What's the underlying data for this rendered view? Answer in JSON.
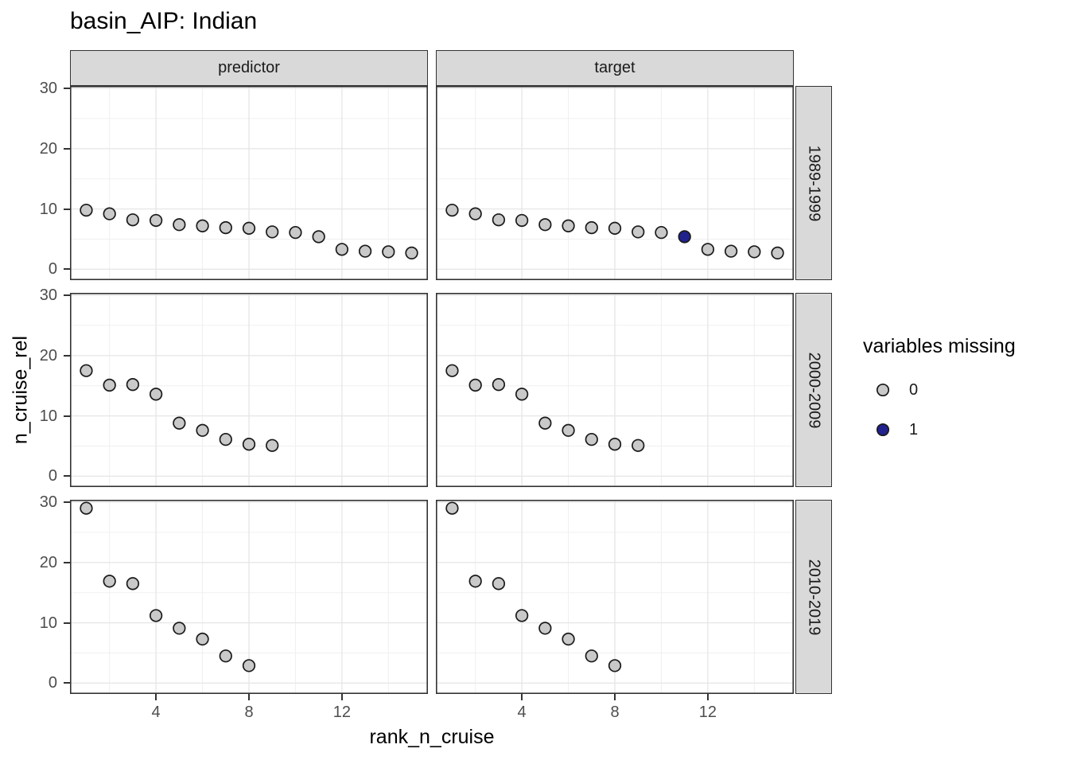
{
  "colors": {
    "background": "#ffffff",
    "panel_background": "#ffffff",
    "panel_border": "#333333",
    "strip_fill": "#d9d9d9",
    "strip_border": "#333333",
    "grid_major": "#e7e7e7",
    "grid_minor": "#f0f0f0",
    "tick_mark": "#333333",
    "tick_label": "#4d4d4d",
    "point_stroke": "#1a1a1a"
  },
  "chart_data": {
    "type": "scatter",
    "title": "basin_AIP: Indian",
    "xlabel": "rank_n_cruise",
    "ylabel": "n_cruise_rel",
    "col_facets": [
      "predictor",
      "target"
    ],
    "row_facets": [
      "1989-1999",
      "2000-2009",
      "2010-2019"
    ],
    "x_ticks": [
      4,
      8,
      12
    ],
    "y_ticks": [
      30,
      20,
      10,
      0
    ],
    "x_minor_ticks": [
      2,
      6,
      10,
      14
    ],
    "y_minor_ticks": [
      25,
      15,
      5
    ],
    "x_domain": [
      0.3,
      15.7
    ],
    "y_domain": [
      -1.8,
      30.4
    ],
    "grid": true,
    "legend": {
      "title": "variables missing",
      "position": "right",
      "entries": [
        {
          "label": "0",
          "fill": "#c9c9c9"
        },
        {
          "label": "1",
          "fill": "#22228e"
        }
      ]
    },
    "panels": [
      {
        "row_facet": "1989-1999",
        "col_facet": "predictor",
        "points": [
          {
            "x": 1,
            "y": 9.8,
            "missing": 0
          },
          {
            "x": 2,
            "y": 9.2,
            "missing": 0
          },
          {
            "x": 3,
            "y": 8.2,
            "missing": 0
          },
          {
            "x": 4,
            "y": 8.1,
            "missing": 0
          },
          {
            "x": 5,
            "y": 7.4,
            "missing": 0
          },
          {
            "x": 6,
            "y": 7.2,
            "missing": 0
          },
          {
            "x": 7,
            "y": 6.9,
            "missing": 0
          },
          {
            "x": 8,
            "y": 6.8,
            "missing": 0
          },
          {
            "x": 9,
            "y": 6.2,
            "missing": 0
          },
          {
            "x": 10,
            "y": 6.1,
            "missing": 0
          },
          {
            "x": 11,
            "y": 5.4,
            "missing": 0
          },
          {
            "x": 12,
            "y": 3.3,
            "missing": 0
          },
          {
            "x": 13,
            "y": 3.0,
            "missing": 0
          },
          {
            "x": 14,
            "y": 2.9,
            "missing": 0
          },
          {
            "x": 15,
            "y": 2.7,
            "missing": 0
          }
        ]
      },
      {
        "row_facet": "1989-1999",
        "col_facet": "target",
        "points": [
          {
            "x": 1,
            "y": 9.8,
            "missing": 0
          },
          {
            "x": 2,
            "y": 9.2,
            "missing": 0
          },
          {
            "x": 3,
            "y": 8.2,
            "missing": 0
          },
          {
            "x": 4,
            "y": 8.1,
            "missing": 0
          },
          {
            "x": 5,
            "y": 7.4,
            "missing": 0
          },
          {
            "x": 6,
            "y": 7.2,
            "missing": 0
          },
          {
            "x": 7,
            "y": 6.9,
            "missing": 0
          },
          {
            "x": 8,
            "y": 6.8,
            "missing": 0
          },
          {
            "x": 9,
            "y": 6.2,
            "missing": 0
          },
          {
            "x": 10,
            "y": 6.1,
            "missing": 0
          },
          {
            "x": 11,
            "y": 5.4,
            "missing": 1
          },
          {
            "x": 12,
            "y": 3.3,
            "missing": 0
          },
          {
            "x": 13,
            "y": 3.0,
            "missing": 0
          },
          {
            "x": 14,
            "y": 2.9,
            "missing": 0
          },
          {
            "x": 15,
            "y": 2.7,
            "missing": 0
          }
        ]
      },
      {
        "row_facet": "2000-2009",
        "col_facet": "predictor",
        "points": [
          {
            "x": 1,
            "y": 17.5,
            "missing": 0
          },
          {
            "x": 2,
            "y": 15.1,
            "missing": 0
          },
          {
            "x": 3,
            "y": 15.2,
            "missing": 0
          },
          {
            "x": 4,
            "y": 13.6,
            "missing": 0
          },
          {
            "x": 5,
            "y": 8.8,
            "missing": 0
          },
          {
            "x": 6,
            "y": 7.6,
            "missing": 0
          },
          {
            "x": 7,
            "y": 6.1,
            "missing": 0
          },
          {
            "x": 8,
            "y": 5.3,
            "missing": 0
          },
          {
            "x": 9,
            "y": 5.1,
            "missing": 0
          }
        ]
      },
      {
        "row_facet": "2000-2009",
        "col_facet": "target",
        "points": [
          {
            "x": 1,
            "y": 17.5,
            "missing": 0
          },
          {
            "x": 2,
            "y": 15.1,
            "missing": 0
          },
          {
            "x": 3,
            "y": 15.2,
            "missing": 0
          },
          {
            "x": 4,
            "y": 13.6,
            "missing": 0
          },
          {
            "x": 5,
            "y": 8.8,
            "missing": 0
          },
          {
            "x": 6,
            "y": 7.6,
            "missing": 0
          },
          {
            "x": 7,
            "y": 6.1,
            "missing": 0
          },
          {
            "x": 8,
            "y": 5.3,
            "missing": 0
          },
          {
            "x": 9,
            "y": 5.1,
            "missing": 0
          }
        ]
      },
      {
        "row_facet": "2010-2019",
        "col_facet": "predictor",
        "points": [
          {
            "x": 1,
            "y": 29.0,
            "missing": 0
          },
          {
            "x": 2,
            "y": 16.9,
            "missing": 0
          },
          {
            "x": 3,
            "y": 16.5,
            "missing": 0
          },
          {
            "x": 4,
            "y": 11.2,
            "missing": 0
          },
          {
            "x": 5,
            "y": 9.1,
            "missing": 0
          },
          {
            "x": 6,
            "y": 7.3,
            "missing": 0
          },
          {
            "x": 7,
            "y": 4.5,
            "missing": 0
          },
          {
            "x": 8,
            "y": 2.9,
            "missing": 0
          }
        ]
      },
      {
        "row_facet": "2010-2019",
        "col_facet": "target",
        "points": [
          {
            "x": 1,
            "y": 29.0,
            "missing": 0
          },
          {
            "x": 2,
            "y": 16.9,
            "missing": 0
          },
          {
            "x": 3,
            "y": 16.5,
            "missing": 0
          },
          {
            "x": 4,
            "y": 11.2,
            "missing": 0
          },
          {
            "x": 5,
            "y": 9.1,
            "missing": 0
          },
          {
            "x": 6,
            "y": 7.3,
            "missing": 0
          },
          {
            "x": 7,
            "y": 4.5,
            "missing": 0
          },
          {
            "x": 8,
            "y": 2.9,
            "missing": 0
          }
        ]
      }
    ]
  }
}
